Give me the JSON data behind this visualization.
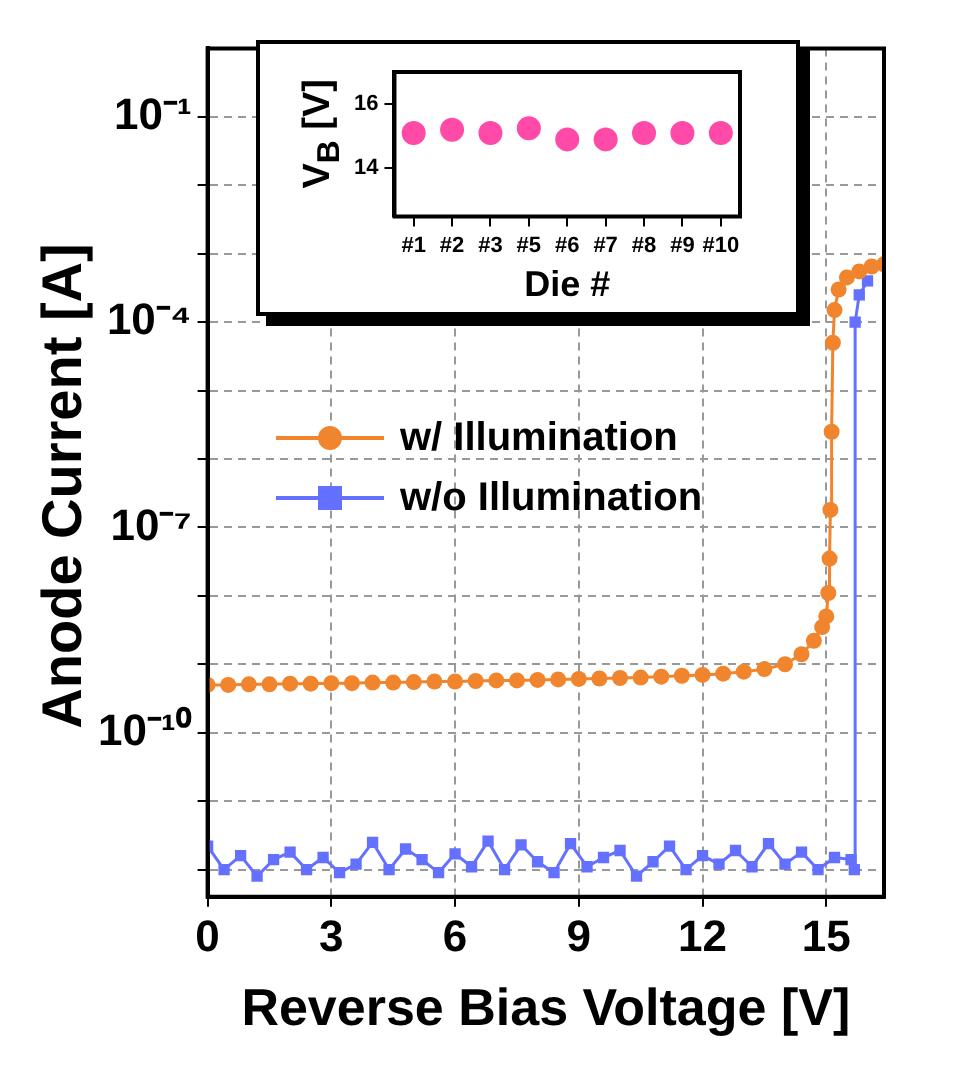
{
  "chart_data": [
    {
      "type": "line",
      "xlabel": "Reverse Bias Voltage [V]",
      "ylabel": "Anode Current [A]",
      "log": "y",
      "grid": true,
      "legend": "left",
      "xlim": [
        0,
        16.4
      ],
      "xticks": [
        0,
        3,
        6,
        9,
        12,
        15
      ],
      "ylim": [
        4e-13,
        1
      ],
      "yticks": [
        {
          "value": 1e-12,
          "label": null
        },
        {
          "value": 1e-11,
          "label": null
        },
        {
          "value": 1e-10,
          "label": "10⁻¹⁰"
        },
        {
          "value": 1e-09,
          "label": null
        },
        {
          "value": 1e-08,
          "label": null
        },
        {
          "value": 1e-07,
          "label": "10⁻⁷"
        },
        {
          "value": 1e-06,
          "label": null
        },
        {
          "value": 1e-05,
          "label": null
        },
        {
          "value": 0.0001,
          "label": "10⁻⁴"
        },
        {
          "value": 0.001,
          "label": null
        },
        {
          "value": 0.01,
          "label": null
        },
        {
          "value": 0.1,
          "label": "10⁻¹"
        }
      ],
      "series": [
        {
          "name": "w/ Illumination",
          "color": "#f0852d",
          "marker": "circle",
          "x": [
            0,
            0.5,
            1,
            1.5,
            2,
            2.5,
            3,
            3.5,
            4,
            4.5,
            5,
            5.5,
            6,
            6.5,
            7,
            7.5,
            8,
            8.5,
            9,
            9.5,
            10,
            10.5,
            11,
            11.5,
            12,
            12.5,
            13,
            13.5,
            14,
            14.4,
            14.7,
            14.9,
            15,
            15.05,
            15.08,
            15.1,
            15.13,
            15.16,
            15.2,
            15.3,
            15.5,
            15.8,
            16.1,
            16.4
          ],
          "values": [
            5e-10,
            5e-10,
            5.1e-10,
            5.1e-10,
            5.2e-10,
            5.2e-10,
            5.3e-10,
            5.3e-10,
            5.4e-10,
            5.4e-10,
            5.5e-10,
            5.6e-10,
            5.6e-10,
            5.7e-10,
            5.8e-10,
            5.8e-10,
            5.9e-10,
            6e-10,
            6.1e-10,
            6.2e-10,
            6.3e-10,
            6.4e-10,
            6.6e-10,
            6.8e-10,
            7e-10,
            7.3e-10,
            7.8e-10,
            8.5e-10,
            1e-09,
            1.4e-09,
            2.2e-09,
            3.5e-09,
            5e-09,
            1.1e-08,
            3.5e-08,
            1.8e-07,
            2.5e-06,
            5e-05,
            0.00015,
            0.0003,
            0.00045,
            0.00055,
            0.00065,
            0.0007
          ]
        },
        {
          "name": "w/o Illumination",
          "color": "#6470ff",
          "marker": "square",
          "x": [
            0,
            0.4,
            0.8,
            1.2,
            1.6,
            2,
            2.4,
            2.8,
            3.2,
            3.6,
            4,
            4.4,
            4.8,
            5.2,
            5.6,
            6,
            6.4,
            6.8,
            7.2,
            7.6,
            8,
            8.4,
            8.8,
            9.2,
            9.6,
            10,
            10.4,
            10.8,
            11.2,
            11.6,
            12,
            12.4,
            12.8,
            13.2,
            13.6,
            14,
            14.4,
            14.8,
            15.2,
            15.6,
            15.68,
            15.7,
            15.8,
            16
          ],
          "values": [
            2.2e-12,
            1e-12,
            1.6e-12,
            8e-13,
            1.4e-12,
            1.8e-12,
            1e-12,
            1.5e-12,
            9e-13,
            1.2e-12,
            2.5e-12,
            1e-12,
            2e-12,
            1.4e-12,
            9e-13,
            1.7e-12,
            1.1e-12,
            2.6e-12,
            1e-12,
            2.3e-12,
            1.3e-12,
            9e-13,
            2.4e-12,
            1.1e-12,
            1.5e-12,
            1.9e-12,
            8e-13,
            1.3e-12,
            2.2e-12,
            1e-12,
            1.6e-12,
            1.2e-12,
            1.9e-12,
            1.1e-12,
            2.4e-12,
            1.2e-12,
            1.8e-12,
            1e-12,
            1.5e-12,
            1.4e-12,
            1e-12,
            0.0001,
            0.00025,
            0.0004
          ]
        }
      ]
    },
    {
      "type": "scatter",
      "xlabel": "Die #",
      "ylabel": "V$_{B}$ [V]",
      "marker": "circle",
      "categories": [
        "#1",
        "#2",
        "#3",
        "#5",
        "#6",
        "#7",
        "#8",
        "#9",
        "#10"
      ],
      "ylim": [
        12.5,
        17
      ],
      "yticks": [
        14,
        16
      ],
      "series": [
        {
          "color": "#ff4aa8",
          "values": [
            15.1,
            15.2,
            15.1,
            15.25,
            14.9,
            14.9,
            15.1,
            15.1,
            15.1
          ]
        }
      ]
    }
  ]
}
